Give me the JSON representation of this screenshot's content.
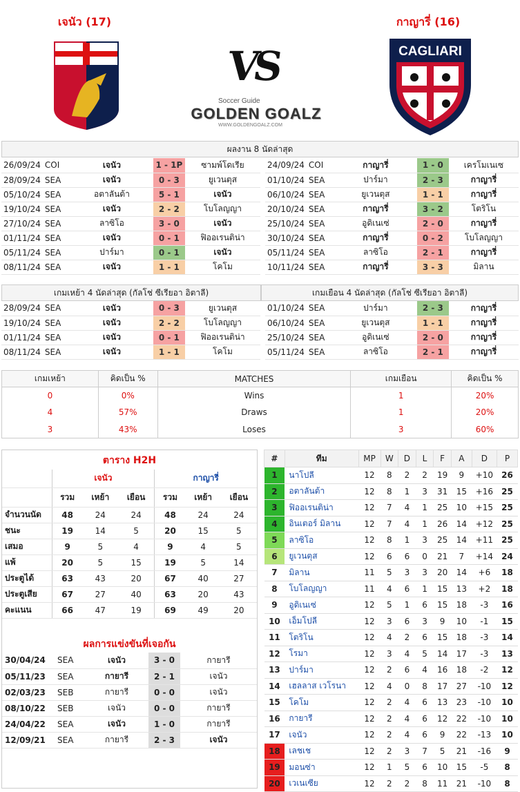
{
  "header": {
    "home": "เจนัว (17)",
    "away": "กาญารี่ (16)",
    "vs": "VS",
    "brand_small": "Soccer Guide",
    "brand": "GOLDEN GOALZ",
    "brand_url": "WWW.GOLDENGOALZ.COM",
    "away_logo_text": "CAGLIARI"
  },
  "last8": {
    "title": "ผลงาน 8 นัดล่าสุด",
    "home": [
      {
        "d": "26/09/24",
        "c": "COI",
        "h": "เจนัว",
        "s": "1 - 1P",
        "a": "ซามพ์โดเรีย",
        "r": "red",
        "hb": true,
        "ab": false
      },
      {
        "d": "28/09/24",
        "c": "SEA",
        "h": "เจนัว",
        "s": "0 - 3",
        "a": "ยูเวนตุส",
        "r": "red",
        "hb": true,
        "ab": false
      },
      {
        "d": "05/10/24",
        "c": "SEA",
        "h": "อตาลันต้า",
        "s": "5 - 1",
        "a": "เจนัว",
        "r": "red",
        "hb": false,
        "ab": true
      },
      {
        "d": "19/10/24",
        "c": "SEA",
        "h": "เจนัว",
        "s": "2 - 2",
        "a": "โบโลญญา",
        "r": "drw",
        "hb": true,
        "ab": false
      },
      {
        "d": "27/10/24",
        "c": "SEA",
        "h": "ลาซิโอ",
        "s": "3 - 0",
        "a": "เจนัว",
        "r": "red",
        "hb": false,
        "ab": true
      },
      {
        "d": "01/11/24",
        "c": "SEA",
        "h": "เจนัว",
        "s": "0 - 1",
        "a": "ฟิออเรนติน่า",
        "r": "red",
        "hb": true,
        "ab": false
      },
      {
        "d": "05/11/24",
        "c": "SEA",
        "h": "ปาร์มา",
        "s": "0 - 1",
        "a": "เจนัว",
        "r": "grn",
        "hb": false,
        "ab": true
      },
      {
        "d": "08/11/24",
        "c": "SEA",
        "h": "เจนัว",
        "s": "1 - 1",
        "a": "โคโม",
        "r": "drw",
        "hb": true,
        "ab": false
      }
    ],
    "away": [
      {
        "d": "24/09/24",
        "c": "COI",
        "h": "กาญารี่",
        "s": "1 - 0",
        "a": "เครโมเนเซ",
        "r": "grn",
        "hb": true,
        "ab": false
      },
      {
        "d": "01/10/24",
        "c": "SEA",
        "h": "ปาร์มา",
        "s": "2 - 3",
        "a": "กาญารี่",
        "r": "grn",
        "hb": false,
        "ab": true
      },
      {
        "d": "06/10/24",
        "c": "SEA",
        "h": "ยูเวนตุส",
        "s": "1 - 1",
        "a": "กาญารี่",
        "r": "drw",
        "hb": false,
        "ab": true
      },
      {
        "d": "20/10/24",
        "c": "SEA",
        "h": "กาญารี่",
        "s": "3 - 2",
        "a": "โตริโน",
        "r": "grn",
        "hb": true,
        "ab": false
      },
      {
        "d": "25/10/24",
        "c": "SEA",
        "h": "อูดิเนเซ่",
        "s": "2 - 0",
        "a": "กาญารี่",
        "r": "red",
        "hb": false,
        "ab": true
      },
      {
        "d": "30/10/24",
        "c": "SEA",
        "h": "กาญารี่",
        "s": "0 - 2",
        "a": "โบโลญญา",
        "r": "red",
        "hb": true,
        "ab": false
      },
      {
        "d": "05/11/24",
        "c": "SEA",
        "h": "ลาซิโอ",
        "s": "2 - 1",
        "a": "กาญารี่",
        "r": "red",
        "hb": false,
        "ab": true
      },
      {
        "d": "10/11/24",
        "c": "SEA",
        "h": "กาญารี่",
        "s": "3 - 3",
        "a": "มิลาน",
        "r": "drw",
        "hb": true,
        "ab": false
      }
    ]
  },
  "last4": {
    "home_title": "เกมเหย้า 4 นัดล่าสุด (กัลโช่ ซีเรียอา อิตาลี)",
    "away_title": "เกมเยือน 4 นัดล่าสุด (กัลโช่ ซีเรียอา อิตาลี)",
    "home": [
      {
        "d": "28/09/24",
        "c": "SEA",
        "h": "เจนัว",
        "s": "0 - 3",
        "a": "ยูเวนตุส",
        "r": "red",
        "hb": true,
        "ab": false
      },
      {
        "d": "19/10/24",
        "c": "SEA",
        "h": "เจนัว",
        "s": "2 - 2",
        "a": "โบโลญญา",
        "r": "drw",
        "hb": true,
        "ab": false
      },
      {
        "d": "01/11/24",
        "c": "SEA",
        "h": "เจนัว",
        "s": "0 - 1",
        "a": "ฟิออเรนติน่า",
        "r": "red",
        "hb": true,
        "ab": false
      },
      {
        "d": "08/11/24",
        "c": "SEA",
        "h": "เจนัว",
        "s": "1 - 1",
        "a": "โคโม",
        "r": "drw",
        "hb": true,
        "ab": false
      }
    ],
    "away": [
      {
        "d": "01/10/24",
        "c": "SEA",
        "h": "ปาร์มา",
        "s": "2 - 3",
        "a": "กาญารี่",
        "r": "grn",
        "hb": false,
        "ab": true
      },
      {
        "d": "06/10/24",
        "c": "SEA",
        "h": "ยูเวนตุส",
        "s": "1 - 1",
        "a": "กาญารี่",
        "r": "drw",
        "hb": false,
        "ab": true
      },
      {
        "d": "25/10/24",
        "c": "SEA",
        "h": "อูดิเนเซ่",
        "s": "2 - 0",
        "a": "กาญารี่",
        "r": "red",
        "hb": false,
        "ab": true
      },
      {
        "d": "05/11/24",
        "c": "SEA",
        "h": "ลาซิโอ",
        "s": "2 - 1",
        "a": "กาญารี่",
        "r": "red",
        "hb": false,
        "ab": true
      }
    ]
  },
  "summary": {
    "h": [
      "เกมเหย้า",
      "คิดเป็น %",
      "MATCHES",
      "เกมเยือน",
      "คิดเป็น %"
    ],
    "rows": [
      [
        "0",
        "0%",
        "Wins",
        "1",
        "20%"
      ],
      [
        "4",
        "57%",
        "Draws",
        "1",
        "20%"
      ],
      [
        "3",
        "43%",
        "Loses",
        "3",
        "60%"
      ]
    ]
  },
  "h2h": {
    "title": "ตาราง H2H",
    "home": "เจนัว",
    "away": "กาญารี่",
    "cols": [
      "รวม",
      "เหย้า",
      "เยือน",
      "รวม",
      "เหย้า",
      "เยือน"
    ],
    "rows": [
      [
        "จำนวนนัด",
        "48",
        "24",
        "24",
        "48",
        "24",
        "24"
      ],
      [
        "ชนะ",
        "19",
        "14",
        "5",
        "20",
        "15",
        "5"
      ],
      [
        "เสมอ",
        "9",
        "5",
        "4",
        "9",
        "4",
        "5"
      ],
      [
        "แพ้",
        "20",
        "5",
        "15",
        "19",
        "5",
        "14"
      ],
      [
        "ประตูได้",
        "63",
        "43",
        "20",
        "67",
        "40",
        "27"
      ],
      [
        "ประตูเสีย",
        "67",
        "27",
        "40",
        "63",
        "20",
        "43"
      ],
      [
        "คะแนน",
        "66",
        "47",
        "19",
        "69",
        "49",
        "20"
      ]
    ],
    "meet_title": "ผลการแข่งขันที่เจอกัน",
    "meets": [
      {
        "d": "30/04/24",
        "c": "SEA",
        "h": "เจนัว",
        "s": "3 - 0",
        "a": "กายารี",
        "hb": true,
        "ab": false
      },
      {
        "d": "05/11/23",
        "c": "SEA",
        "h": "กายารี",
        "s": "2 - 1",
        "a": "เจนัว",
        "hb": true,
        "ab": false
      },
      {
        "d": "02/03/23",
        "c": "SEB",
        "h": "กายารี",
        "s": "0 - 0",
        "a": "เจนัว",
        "hb": false,
        "ab": false
      },
      {
        "d": "08/10/22",
        "c": "SEB",
        "h": "เจนัว",
        "s": "0 - 0",
        "a": "กายารี",
        "hb": false,
        "ab": false
      },
      {
        "d": "24/04/22",
        "c": "SEA",
        "h": "เจนัว",
        "s": "1 - 0",
        "a": "กายารี",
        "hb": true,
        "ab": false
      },
      {
        "d": "12/09/21",
        "c": "SEA",
        "h": "กายารี",
        "s": "2 - 3",
        "a": "เจนัว",
        "hb": false,
        "ab": true
      }
    ]
  },
  "league": {
    "cols": [
      "#",
      "ทีม",
      "MP",
      "W",
      "D",
      "L",
      "F",
      "A",
      "D",
      "P"
    ],
    "rows": [
      [
        "1",
        "นาโปลี",
        "12",
        "8",
        "2",
        "2",
        "19",
        "9",
        "+10",
        "26",
        "#2db52d"
      ],
      [
        "2",
        "อตาลันต้า",
        "12",
        "8",
        "1",
        "3",
        "31",
        "15",
        "+16",
        "25",
        "#2db52d"
      ],
      [
        "3",
        "ฟิออเรนติน่า",
        "12",
        "7",
        "4",
        "1",
        "25",
        "10",
        "+15",
        "25",
        "#2db52d"
      ],
      [
        "4",
        "อินเตอร์ มิลาน",
        "12",
        "7",
        "4",
        "1",
        "26",
        "14",
        "+12",
        "25",
        "#2db52d"
      ],
      [
        "5",
        "ลาซิโอ",
        "12",
        "8",
        "1",
        "3",
        "25",
        "14",
        "+11",
        "25",
        "#7ed957"
      ],
      [
        "6",
        "ยูเวนตุส",
        "12",
        "6",
        "6",
        "0",
        "21",
        "7",
        "+14",
        "24",
        "#b6e57a"
      ],
      [
        "7",
        "มิลาน",
        "11",
        "5",
        "3",
        "3",
        "20",
        "14",
        "+6",
        "18",
        ""
      ],
      [
        "8",
        "โบโลญญา",
        "11",
        "4",
        "6",
        "1",
        "15",
        "13",
        "+2",
        "18",
        ""
      ],
      [
        "9",
        "อูดิเนเซ่",
        "12",
        "5",
        "1",
        "6",
        "15",
        "18",
        "-3",
        "16",
        ""
      ],
      [
        "10",
        "เอ็มโปลี",
        "12",
        "3",
        "6",
        "3",
        "9",
        "10",
        "-1",
        "15",
        ""
      ],
      [
        "11",
        "โตริโน",
        "12",
        "4",
        "2",
        "6",
        "15",
        "18",
        "-3",
        "14",
        ""
      ],
      [
        "12",
        "โรมา",
        "12",
        "3",
        "4",
        "5",
        "14",
        "17",
        "-3",
        "13",
        ""
      ],
      [
        "13",
        "ปาร์มา",
        "12",
        "2",
        "6",
        "4",
        "16",
        "18",
        "-2",
        "12",
        ""
      ],
      [
        "14",
        "เฮลลาส เวโรนา",
        "12",
        "4",
        "0",
        "8",
        "17",
        "27",
        "-10",
        "12",
        ""
      ],
      [
        "15",
        "โคโม",
        "12",
        "2",
        "4",
        "6",
        "13",
        "23",
        "-10",
        "10",
        ""
      ],
      [
        "16",
        "กายารี",
        "12",
        "2",
        "4",
        "6",
        "12",
        "22",
        "-10",
        "10",
        ""
      ],
      [
        "17",
        "เจนัว",
        "12",
        "2",
        "4",
        "6",
        "9",
        "22",
        "-13",
        "10",
        ""
      ],
      [
        "18",
        "เลชเช",
        "12",
        "2",
        "3",
        "7",
        "5",
        "21",
        "-16",
        "9",
        "#e61e1e"
      ],
      [
        "19",
        "มอนซ่า",
        "12",
        "1",
        "5",
        "6",
        "10",
        "15",
        "-5",
        "8",
        "#e61e1e"
      ],
      [
        "20",
        "เวเนเซีย",
        "12",
        "2",
        "2",
        "8",
        "11",
        "21",
        "-10",
        "8",
        "#e61e1e"
      ]
    ]
  }
}
